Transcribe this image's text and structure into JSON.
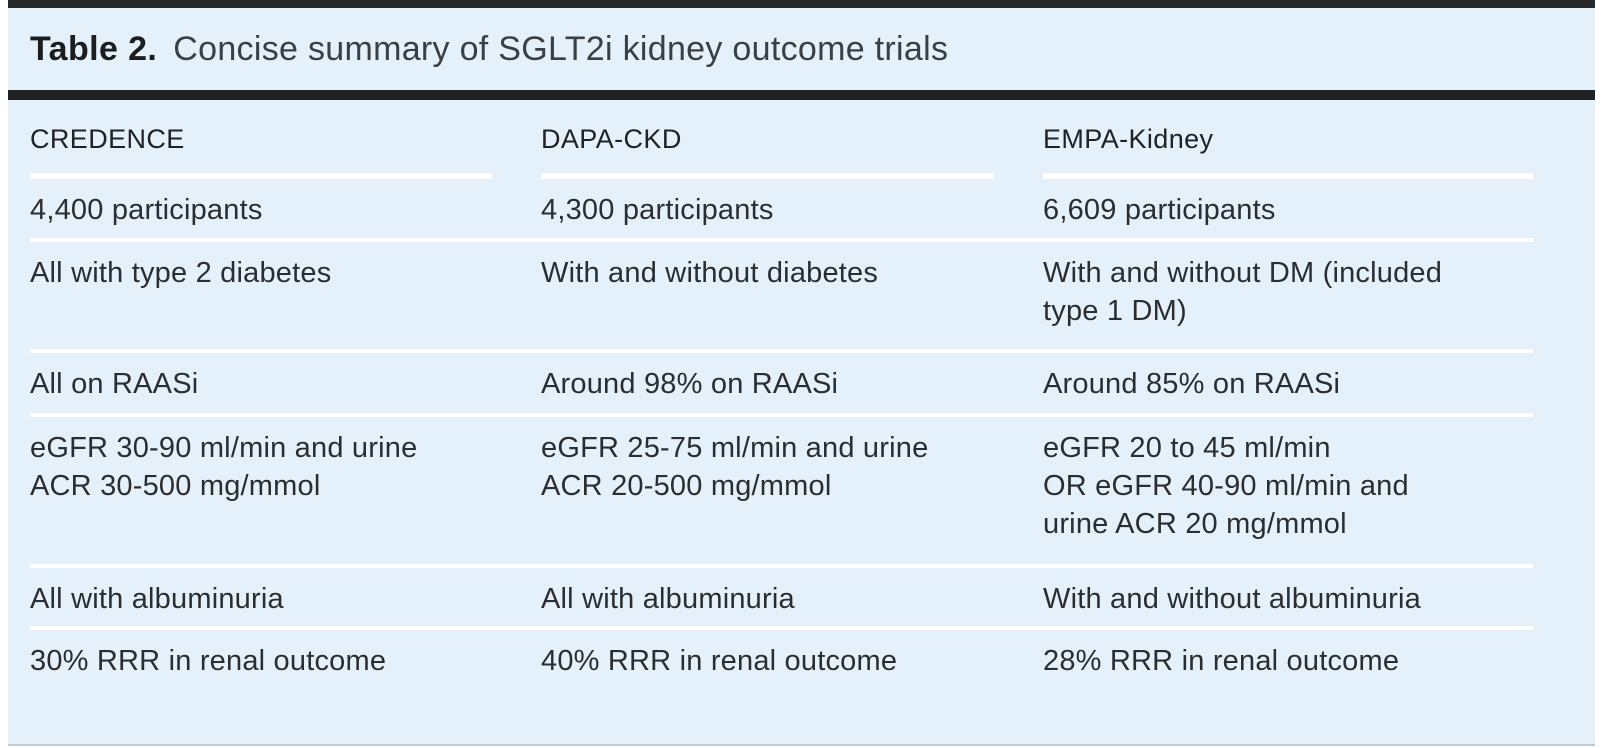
{
  "table": {
    "title_label": "Table 2.",
    "title_text": "Concise summary of SGLT2i kidney outcome trials",
    "columns": [
      {
        "header": "CREDENCE",
        "rows": [
          "4,400 participants",
          "All with type 2 diabetes",
          "All on RAASi",
          "eGFR 30-90 ml/min and urine\nACR 30-500 mg/mmol",
          "All with albuminuria",
          "30% RRR in renal outcome"
        ]
      },
      {
        "header": "DAPA-CKD",
        "rows": [
          "4,300 participants",
          "With and without diabetes",
          "Around 98% on RAASi",
          "eGFR 25-75 ml/min and urine\nACR 20-500 mg/mmol",
          "All with albuminuria",
          "40% RRR in renal outcome"
        ]
      },
      {
        "header": "EMPA-Kidney",
        "rows": [
          "6,609 participants",
          "With and without DM (included\ntype 1 DM)",
          "Around 85% on RAASi",
          "eGFR 20 to 45 ml/min\nOR eGFR 40-90 ml/min and\nurine ACR 20 mg/mmol",
          "With and without albuminuria",
          "28% RRR in renal outcome"
        ]
      }
    ],
    "colors": {
      "panel_background": "#e5f1fa",
      "rule_dark": "#1f2122",
      "separator_white": "#ffffff",
      "body_text": "#2b2e31"
    }
  }
}
